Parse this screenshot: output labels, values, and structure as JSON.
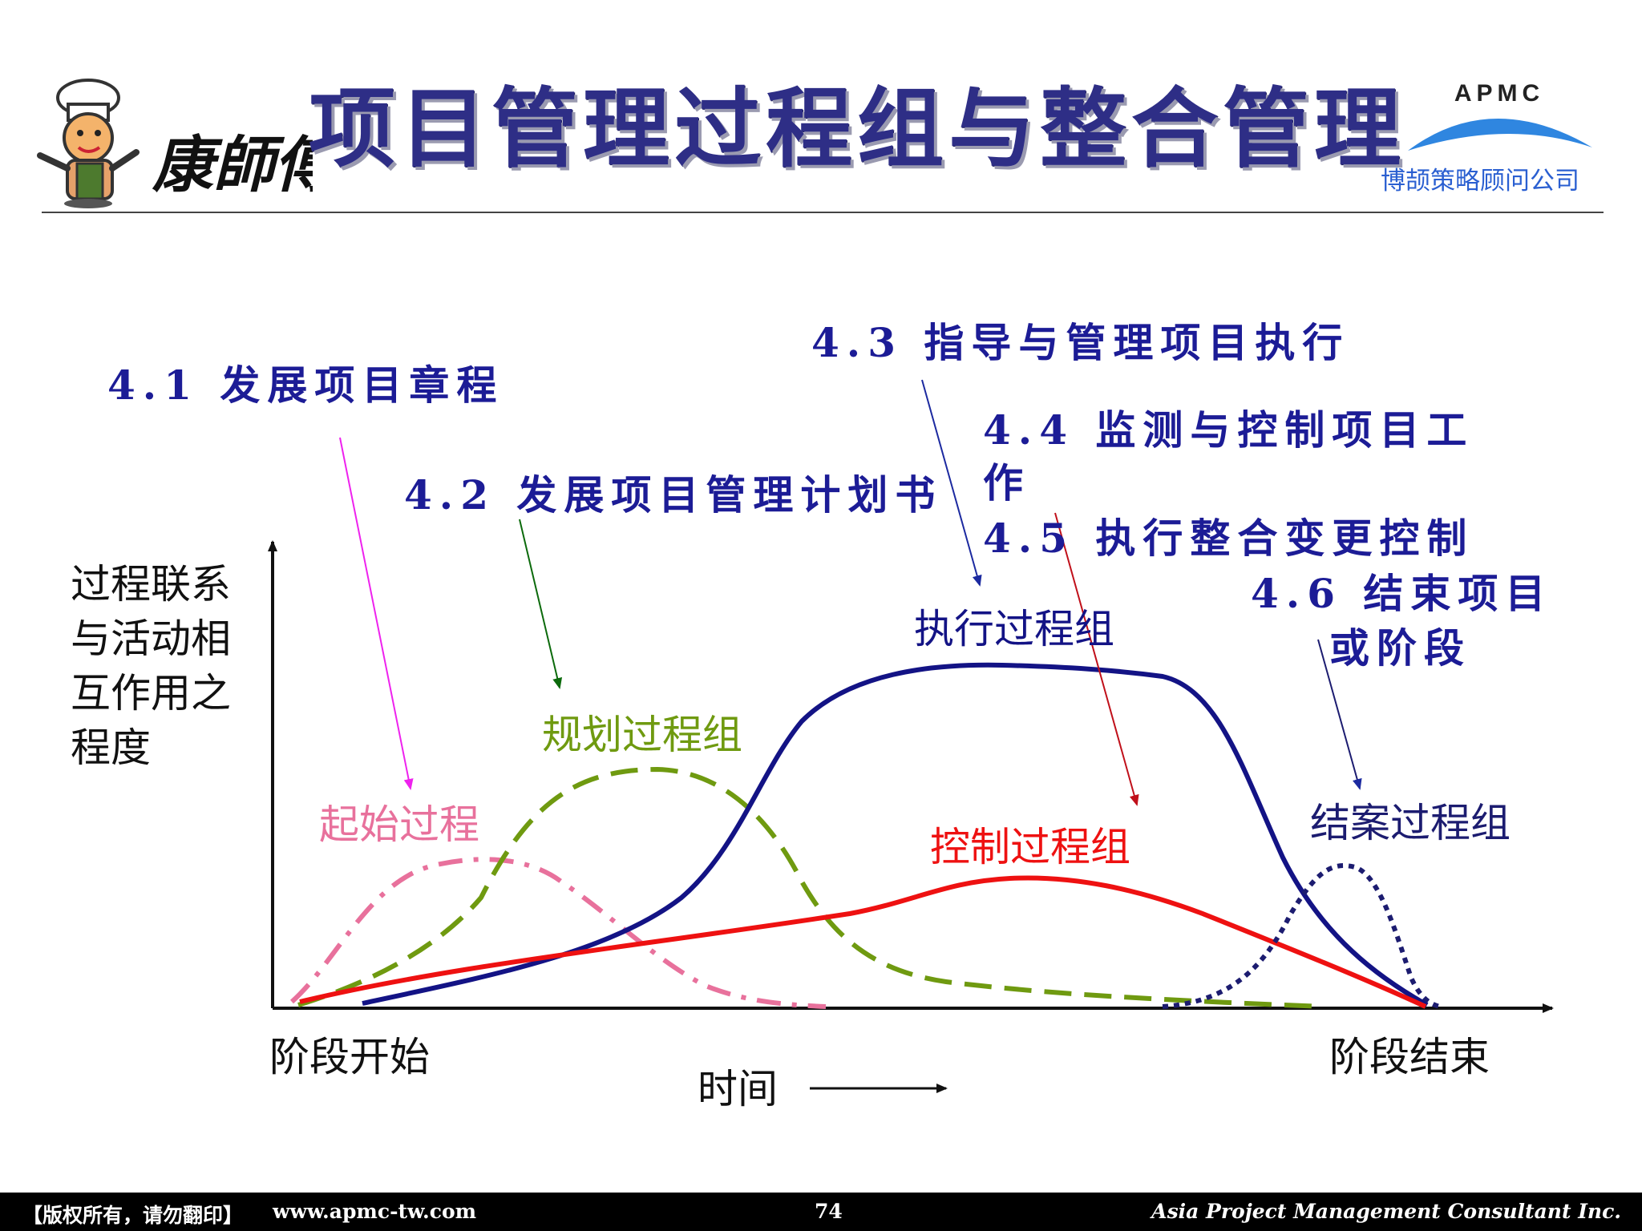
{
  "header": {
    "brand_mark": "康師傅",
    "title": "项目管理过程组与整合管理",
    "apmc_logo": "APMC",
    "company_cn": "博颉策略顾问公司"
  },
  "process_labels": {
    "p41": "4.1  发展项目章程",
    "p42": "4.2  发展项目管理计划书",
    "p43": "4.3  指导与管理项目执行",
    "p44_line1": "4.4  监测与控制项目工",
    "p44_line2": "作",
    "p45": "4.5  执行整合变更控制",
    "p46_line1": "4.6  结束项目",
    "p46_line2": "或阶段"
  },
  "groups": {
    "initiating": "起始过程",
    "planning": "规划过程组",
    "executing": "执行过程组",
    "controlling": "控制过程组",
    "closing": "结案过程组"
  },
  "axes": {
    "y_label_lines": [
      "过程联系",
      "与活动相",
      "互作用之",
      "程度"
    ],
    "phase_start": "阶段开始",
    "phase_end": "阶段结束",
    "time_label": "时间"
  },
  "colors": {
    "initiating": "#e8719c",
    "planning": "#6f9a10",
    "executing": "#131385",
    "controlling": "#ee1111",
    "closing": "#1c1c70",
    "label_text": "#1c1c96"
  },
  "footer": {
    "copyright": "【版权所有，请勿翻印】",
    "url": "www.apmc-tw.com",
    "page": "74",
    "company_en": "Asia Project Management Consultant Inc."
  }
}
